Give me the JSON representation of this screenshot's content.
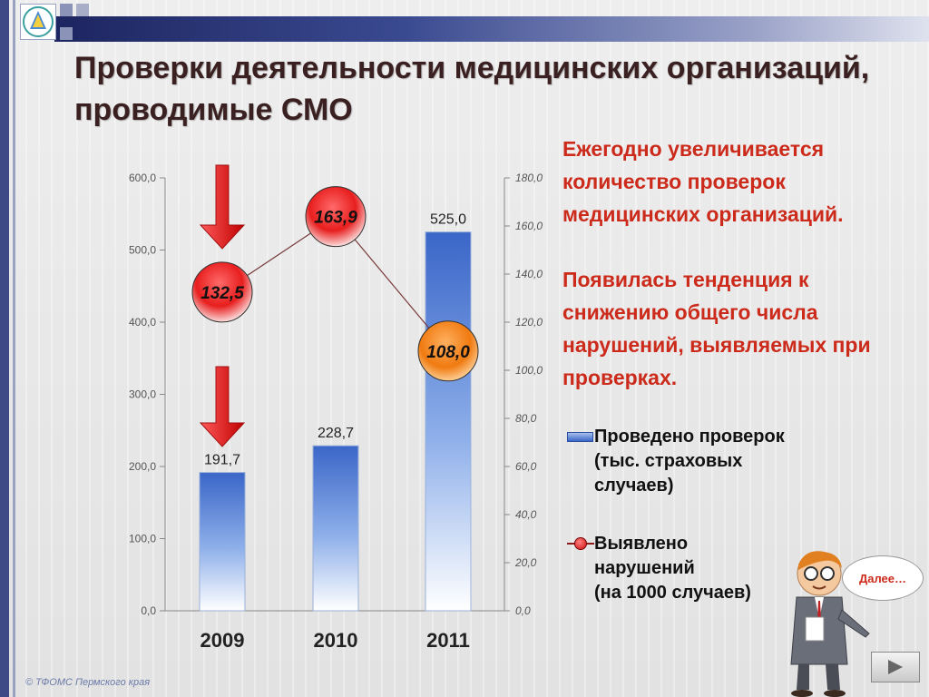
{
  "slide": {
    "title": "Проверки деятельности медицинских организаций, проводимые СМО",
    "paragraphs": [
      "Ежегодно увеличивается количество проверок медицинских организаций.",
      "Появилась тенденция к снижению общего числа нарушений, выявляемых при проверках."
    ],
    "legend_bar": [
      "Проведено проверок",
      "(тыс. страховых",
      "случаев)"
    ],
    "legend_line": [
      "Выявлено",
      "нарушений",
      "(на 1000 случаев)"
    ],
    "next_bubble": "Далее…",
    "footer": "© ТФОМС Пермского края"
  },
  "colors": {
    "bar_top": "#3a66c8",
    "bar_bottom": "#ffffff",
    "circle_red": "#e81e1e",
    "circle_orange": "#f07a10",
    "arrow_red": "#e11a1a",
    "text_red": "#cc2a1a"
  },
  "chart_data": {
    "type": "bar",
    "categories": [
      "2009",
      "2010",
      "2011"
    ],
    "ylim": [
      0,
      600
    ],
    "y2lim": [
      0,
      180
    ],
    "yticks": [
      "0,0",
      "100,0",
      "200,0",
      "300,0",
      "400,0",
      "500,0",
      "600,0"
    ],
    "y2ticks": [
      "0,0",
      "20,0",
      "40,0",
      "60,0",
      "80,0",
      "100,0",
      "120,0",
      "140,0",
      "160,0",
      "180,0"
    ],
    "series": [
      {
        "name": "Проведено проверок (тыс. страховых случаев)",
        "axis": "left",
        "kind": "bar",
        "values": [
          191.7,
          228.7,
          525.0
        ],
        "labels": [
          "191,7",
          "228,7",
          "525,0"
        ]
      },
      {
        "name": "Выявлено нарушений (на 1000 случаев)",
        "axis": "right",
        "kind": "line",
        "values": [
          132.5,
          163.9,
          108.0
        ],
        "labels": [
          "132,5",
          "163,9",
          "108,0"
        ]
      }
    ],
    "down_arrows": [
      "2009"
    ]
  }
}
